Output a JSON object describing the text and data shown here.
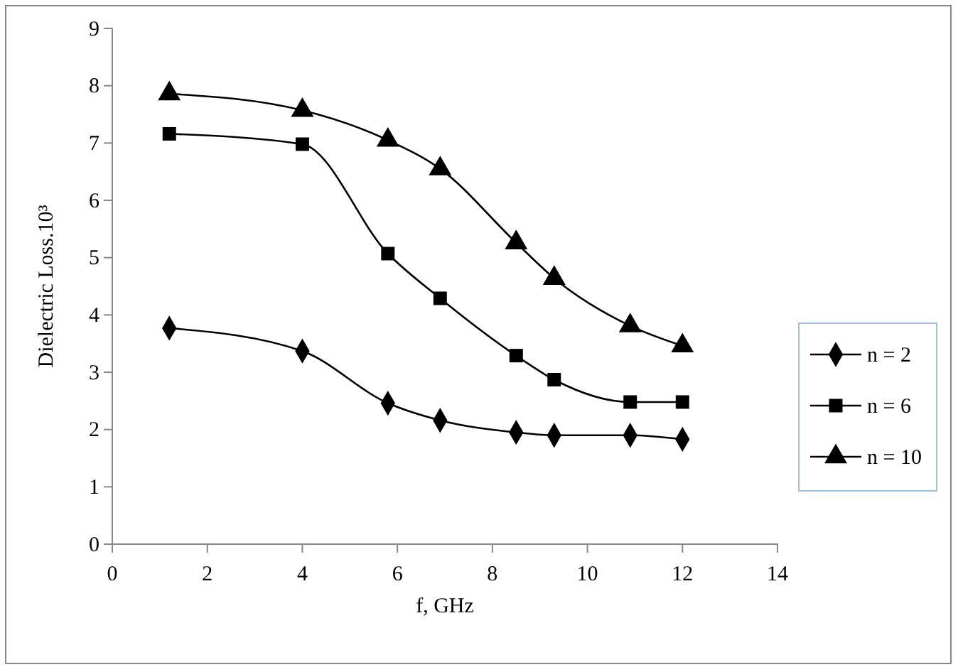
{
  "chart_data": {
    "type": "line",
    "xlabel": "f, GHz",
    "ylabel": "Dielectric Loss.10³",
    "x": [
      1.2,
      4,
      5.8,
      6.9,
      8.5,
      9.3,
      10.9,
      12
    ],
    "xlim": [
      0,
      14
    ],
    "xticks": [
      0,
      2,
      4,
      6,
      8,
      10,
      12,
      14
    ],
    "ylim": [
      0,
      9
    ],
    "yticks": [
      0,
      1,
      2,
      3,
      4,
      5,
      6,
      7,
      8,
      9
    ],
    "grid": false,
    "legend": "right",
    "series": [
      {
        "name": "n = 2",
        "color": "#000000",
        "marker": "diamond",
        "values": [
          3.77,
          3.37,
          2.46,
          2.16,
          1.95,
          1.9,
          1.9,
          1.83
        ]
      },
      {
        "name": "n = 6",
        "color": "#000000",
        "marker": "square",
        "values": [
          7.16,
          6.98,
          5.07,
          4.29,
          3.29,
          2.87,
          2.48,
          2.48
        ]
      },
      {
        "name": "n = 10",
        "color": "#000000",
        "marker": "triangle",
        "values": [
          7.86,
          7.57,
          7.05,
          6.55,
          5.26,
          4.64,
          3.81,
          3.46
        ]
      }
    ]
  }
}
